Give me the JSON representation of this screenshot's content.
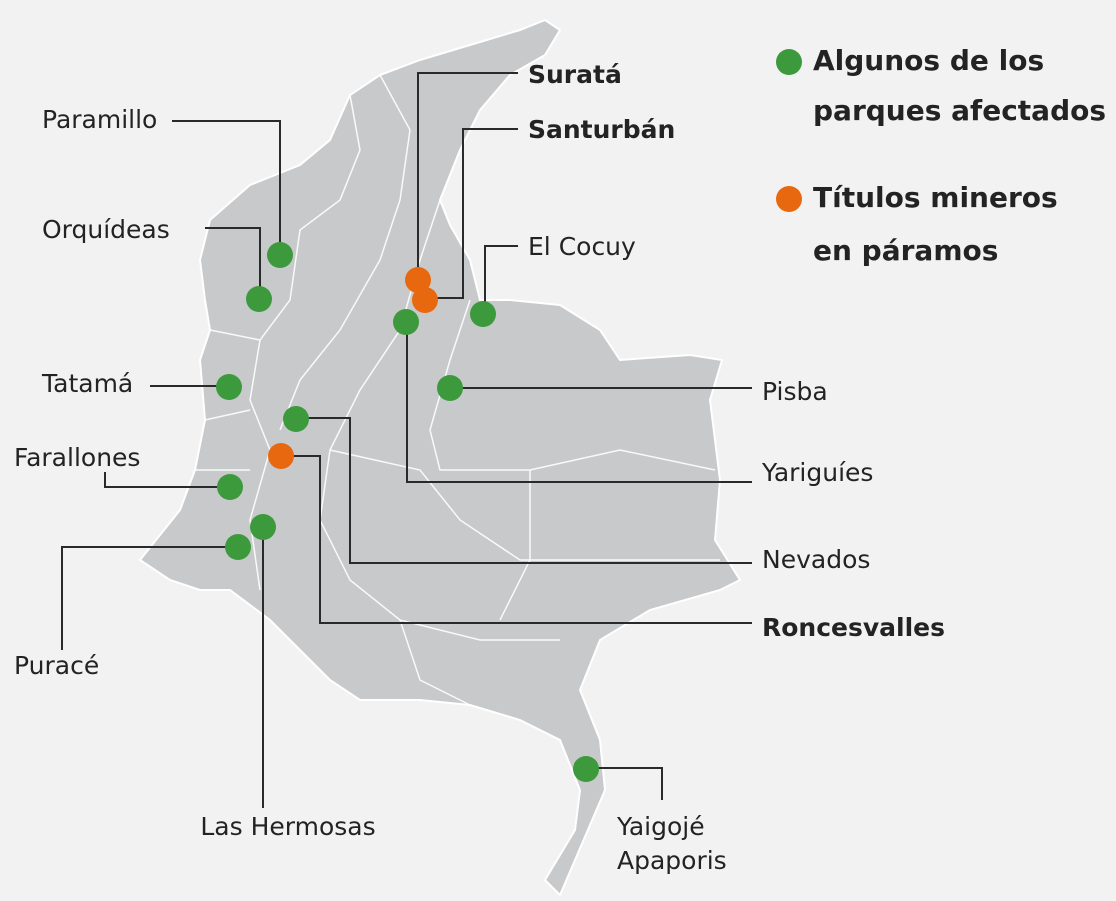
{
  "legend": [
    {
      "color": "#3c9a3c",
      "lines": [
        "Algunos de los",
        "parques afectados"
      ]
    },
    {
      "color": "#e8680f",
      "lines": [
        "Títulos mineros",
        "en páramos"
      ]
    }
  ],
  "places": [
    {
      "lines": [
        "Paramillo"
      ],
      "color": "#3c9a3c",
      "bold": false
    },
    {
      "lines": [
        "Orquídeas"
      ],
      "color": "#3c9a3c",
      "bold": false
    },
    {
      "lines": [
        "Tatamá"
      ],
      "color": "#3c9a3c",
      "bold": false
    },
    {
      "lines": [
        "Farallones"
      ],
      "color": "#3c9a3c",
      "bold": false
    },
    {
      "lines": [
        "Puracé"
      ],
      "color": "#3c9a3c",
      "bold": false
    },
    {
      "lines": [
        "Las Hermosas"
      ],
      "color": "#3c9a3c",
      "bold": false
    },
    {
      "lines": [
        "Suratá"
      ],
      "color": "#e8680f",
      "bold": true
    },
    {
      "lines": [
        "Santurbán"
      ],
      "color": "#e8680f",
      "bold": true
    },
    {
      "lines": [
        "El Cocuy"
      ],
      "color": "#3c9a3c",
      "bold": false
    },
    {
      "lines": [
        "Pisba"
      ],
      "color": "#3c9a3c",
      "bold": false
    },
    {
      "lines": [
        "Yariguíes"
      ],
      "color": "#3c9a3c",
      "bold": false
    },
    {
      "lines": [
        "Nevados"
      ],
      "color": "#3c9a3c",
      "bold": false
    },
    {
      "lines": [
        "Roncesvalles"
      ],
      "color": "#e8680f",
      "bold": true
    },
    {
      "lines": [
        "Yaigojé",
        "Apaporis"
      ],
      "color": "#3c9a3c",
      "bold": false
    }
  ]
}
